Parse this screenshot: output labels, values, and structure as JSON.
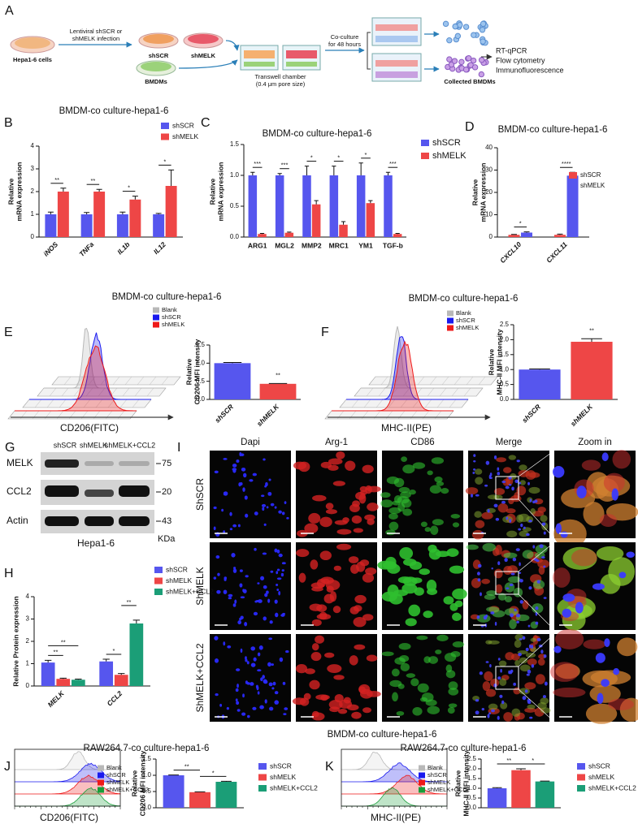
{
  "panel_a": {
    "letter": "A",
    "source": "Hepa1-6 cells",
    "infection": [
      "Lentiviral shSCR or",
      "shMELK infection"
    ],
    "dish_1": "shSCR",
    "dish_2": "shMELK",
    "macrophages": "BMDMs",
    "chamber": [
      "Transwell chamber",
      "(0.4 μm pore size)"
    ],
    "coculture": [
      "Co-culture",
      "for 48 hours"
    ],
    "collected": "Collected BMDMs",
    "assays": [
      "RT-qPCR",
      "Flow cytometry",
      "Immunofluorescence"
    ]
  },
  "chart_data": [
    {
      "type": "bar",
      "letter": "B",
      "title": "BMDM-co culture-hepa1-6",
      "ylabel": [
        "Relative",
        "mRNA expression"
      ],
      "categories": [
        "iNOS",
        "TNFa",
        "IL1b",
        "IL12"
      ],
      "series": [
        {
          "name": "shSCR",
          "color": "#5656ee",
          "values": [
            1.0,
            1.0,
            1.0,
            1.0
          ],
          "errors": [
            0.1,
            0.08,
            0.1,
            0.04
          ]
        },
        {
          "name": "shMELK",
          "color": "#ee4646",
          "values": [
            2.0,
            2.0,
            1.65,
            2.25
          ],
          "errors": [
            0.15,
            0.1,
            0.15,
            0.7
          ]
        }
      ],
      "ylim": [
        0,
        4
      ],
      "yticks": [
        0,
        1,
        2,
        3,
        4
      ],
      "annotations": [
        "**",
        "**",
        "*",
        "*"
      ]
    },
    {
      "type": "bar",
      "letter": "C",
      "title": "BMDM-co culture-hepa1-6",
      "ylabel": [
        "Relative",
        "mRNA expression"
      ],
      "categories": [
        "ARG1",
        "MGL2",
        "MMP2",
        "MRC1",
        "YM1",
        "TGF-b"
      ],
      "series": [
        {
          "name": "shSCR",
          "color": "#5656ee",
          "values": [
            1.0,
            1.0,
            1.0,
            1.0,
            1.0,
            1.0
          ],
          "errors": [
            0.05,
            0.03,
            0.15,
            0.15,
            0.2,
            0.05
          ]
        },
        {
          "name": "shMELK",
          "color": "#ee4646",
          "values": [
            0.05,
            0.07,
            0.53,
            0.2,
            0.55,
            0.05
          ],
          "errors": [
            0.01,
            0.01,
            0.06,
            0.05,
            0.04,
            0.01
          ]
        }
      ],
      "ylim": [
        0,
        1.5
      ],
      "yticks": [
        {
          "value": 0,
          "label": "0.0"
        },
        {
          "value": 0.5,
          "label": "0.5"
        },
        {
          "value": 1,
          "label": "1.0"
        },
        {
          "value": 1.5,
          "label": "1.5"
        }
      ],
      "annotations": [
        "***",
        "***",
        "*",
        "*",
        "*",
        "***"
      ]
    },
    {
      "type": "bar",
      "letter": "D",
      "title": "BMDM-co culture-hepa1-6",
      "ylabel": [
        "Relative",
        "mRNA expression"
      ],
      "categories": [
        "CXCL10",
        "CXCL11"
      ],
      "series": [
        {
          "name": "shSCR",
          "color": "#ee4646",
          "values": [
            1.0,
            1.0
          ],
          "errors": [
            0.2,
            0.3
          ]
        },
        {
          "name": "shMELK",
          "color": "#5656ee",
          "values": [
            2.0,
            27.5
          ],
          "errors": [
            0.3,
            1.5
          ]
        }
      ],
      "ylim": [
        0,
        40
      ],
      "yticks": [
        0,
        10,
        20,
        30,
        40
      ],
      "annotations": [
        "*",
        "****"
      ]
    },
    {
      "type": "bar",
      "letter": "E",
      "title": "BMDM-co culture-hepa1-6",
      "ylabel": [
        "Relative",
        "CD206 MFI intensity"
      ],
      "categories": [
        "shSCR",
        "shMELK"
      ],
      "series": [
        {
          "colors": [
            "#5656ee",
            "#ee4646"
          ],
          "values": [
            1.0,
            0.43
          ],
          "errors": [
            0.02,
            0.01
          ]
        }
      ],
      "ylim": [
        0,
        1.5
      ],
      "yticks": [
        {
          "value": 0,
          "label": "0.0"
        },
        {
          "value": 0.5,
          "label": "0.5"
        },
        {
          "value": 1,
          "label": "1.0"
        },
        {
          "value": 1.5,
          "label": "1.5"
        }
      ],
      "annotations": [
        "**"
      ]
    },
    {
      "type": "bar",
      "letter": "F",
      "title": "BMDM-co culture-hepa1-6",
      "ylabel": [
        "Relative",
        "MHC-II MFI intensity"
      ],
      "categories": [
        "shSCR",
        "shMELK"
      ],
      "series": [
        {
          "colors": [
            "#5656ee",
            "#ee4646"
          ],
          "values": [
            1.0,
            1.93
          ],
          "errors": [
            0.02,
            0.1
          ]
        }
      ],
      "ylim": [
        0,
        2.5
      ],
      "yticks": [
        {
          "value": 0,
          "label": "0.0"
        },
        {
          "value": 0.5,
          "label": "0.5"
        },
        {
          "value": 1,
          "label": "1.0"
        },
        {
          "value": 1.5,
          "label": "1.5"
        },
        {
          "value": 2,
          "label": "2.0"
        },
        {
          "value": 2.5,
          "label": "2.5"
        }
      ],
      "annotations": [
        "**"
      ]
    },
    {
      "type": "bar",
      "letter": "H",
      "ylabel": "Relative Protein expression",
      "categories": [
        "MELK",
        "CCL2"
      ],
      "series": [
        {
          "name": "shSCR",
          "color": "#5656ee",
          "values": [
            1.05,
            1.1
          ],
          "errors": [
            0.1,
            0.1
          ]
        },
        {
          "name": "shMELK",
          "color": "#ee4646",
          "values": [
            0.32,
            0.5
          ],
          "errors": [
            0.03,
            0.06
          ]
        },
        {
          "name": "shMELK+CCL2",
          "color": "#1b9e77",
          "values": [
            0.28,
            2.8
          ],
          "errors": [
            0.03,
            0.15
          ]
        }
      ],
      "ylim": [
        0,
        4
      ],
      "yticks": [
        0,
        1,
        2,
        3,
        4
      ],
      "annotations": [
        "**",
        "**",
        "*",
        "**"
      ]
    },
    {
      "type": "bar",
      "letter": "J",
      "title": "RAW264.7-co culture-hepa1-6",
      "ylabel": [
        "Relative",
        "CD206 MFI intensity"
      ],
      "categories": [
        null
      ],
      "series": [
        {
          "name": "shSCR",
          "color": "#5656ee",
          "values": [
            1.0
          ],
          "errors": [
            0.01
          ]
        },
        {
          "name": "shMELK",
          "color": "#ee4646",
          "values": [
            0.48
          ],
          "errors": [
            0.01
          ]
        },
        {
          "name": "shMELK+CCL2",
          "color": "#1b9e77",
          "values": [
            0.8
          ],
          "errors": [
            0.015
          ]
        }
      ],
      "ylim": [
        0,
        1.5
      ],
      "yticks": [
        {
          "value": 0,
          "label": "0.0"
        },
        {
          "value": 0.5,
          "label": "0.5"
        },
        {
          "value": 1,
          "label": "1.0"
        },
        {
          "value": 1.5,
          "label": "1.5"
        }
      ],
      "annotations": [
        "**",
        "*"
      ]
    },
    {
      "type": "bar",
      "letter": "K",
      "title": "RAW264.7-co culture-hepa1-6",
      "ylabel": [
        "Relative",
        "MHC-II MFI intensity"
      ],
      "categories": [
        null
      ],
      "series": [
        {
          "name": "shSCR",
          "color": "#5656ee",
          "values": [
            1.0
          ],
          "errors": [
            0.03
          ]
        },
        {
          "name": "shMELK",
          "color": "#ee4646",
          "values": [
            1.93
          ],
          "errors": [
            0.07
          ]
        },
        {
          "name": "shMELK+CCL2",
          "color": "#1b9e77",
          "values": [
            1.35
          ],
          "errors": [
            0.02
          ]
        }
      ],
      "ylim": [
        0,
        2.5
      ],
      "yticks": [
        {
          "value": 0,
          "label": "0.0"
        },
        {
          "value": 0.5,
          "label": "0.5"
        },
        {
          "value": 1,
          "label": "1.0"
        },
        {
          "value": 1.5,
          "label": "1.5"
        },
        {
          "value": 2,
          "label": "2.0"
        },
        {
          "value": 2.5,
          "label": "2.5"
        }
      ],
      "annotations": [
        "**",
        "*"
      ]
    }
  ],
  "flow_plots": [
    {
      "legend": [
        {
          "name": "Blank",
          "color": "#b8b8b8"
        },
        {
          "name": "shSCR",
          "color": "#1a1aee"
        },
        {
          "name": "shMELK",
          "color": "#ee1a1a"
        }
      ],
      "xlabel": "CD206(FITC)"
    },
    {
      "legend": [
        {
          "name": "Blank",
          "color": "#b8b8b8"
        },
        {
          "name": "shSCR",
          "color": "#1a1aee"
        },
        {
          "name": "shMELK",
          "color": "#ee1a1a"
        }
      ],
      "xlabel": "MHC-II(PE)"
    },
    {
      "legend": [
        {
          "name": "Blank",
          "color": "#b8b8b8"
        },
        {
          "name": "shSCR",
          "color": "#1a1aee"
        },
        {
          "name": "shMELK",
          "color": "#ee1a1a"
        },
        {
          "name": "shMELK+CCL2",
          "color": "#1a9e3a"
        }
      ],
      "xlabel": "CD206(FITC)"
    },
    {
      "legend": [
        {
          "name": "Blank",
          "color": "#b8b8b8"
        },
        {
          "name": "shSCR",
          "color": "#1a1aee"
        },
        {
          "name": "shMELK",
          "color": "#ee1a1a"
        },
        {
          "name": "shMELK+CCL2",
          "color": "#1a9e3a"
        }
      ],
      "xlabel": "MHC-II(PE)"
    }
  ],
  "panel_g": {
    "letter": "G",
    "lanes": [
      "shSCR",
      "shMELK",
      "shMELK+CCL2"
    ],
    "rows": [
      {
        "name": "MELK",
        "marker": "75"
      },
      {
        "name": "CCL2",
        "marker": "20"
      },
      {
        "name": "Actin",
        "marker": "43"
      }
    ],
    "unit": "KDa",
    "cell_line": "Hepa1-6"
  },
  "panel_i": {
    "letter": "I",
    "columns": [
      "Dapi",
      "Arg-1",
      "CD86",
      "Merge",
      "Zoom in"
    ],
    "rows": [
      "ShSCR",
      "ShMELK",
      "ShMELK+CCL2"
    ],
    "caption": "BMDM-co culture-hepa1-6"
  }
}
